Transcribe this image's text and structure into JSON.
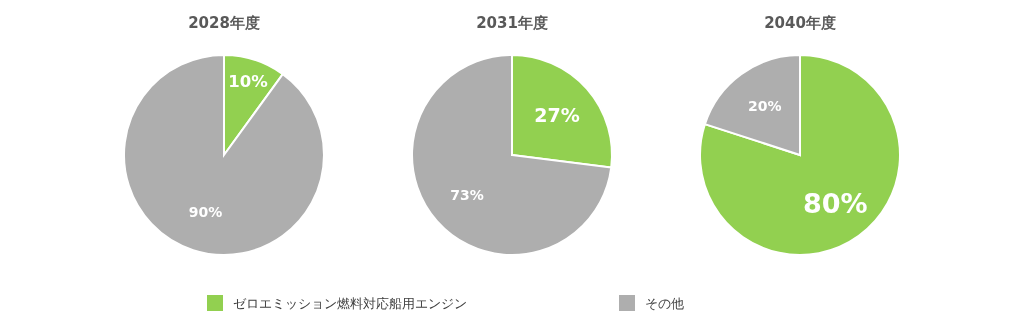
{
  "chart_data": [
    {
      "type": "pie",
      "title": "2028年度",
      "categories": [
        "ゼロエミッション燃料対応船用エンジン",
        "その他"
      ],
      "values": [
        10,
        90
      ],
      "colors": [
        "#92d050",
        "#aeaeae"
      ],
      "value_labels": [
        "10%",
        "90%"
      ],
      "legend": "bottom"
    },
    {
      "type": "pie",
      "title": "2031年度",
      "categories": [
        null,
        null
      ],
      "values": [
        27,
        73
      ],
      "colors": [
        "#92d050",
        "#aeaeae"
      ],
      "value_labels": [
        "27%",
        "73%"
      ]
    },
    {
      "type": "pie",
      "title": "2040年度",
      "categories": [
        null,
        null
      ],
      "values": [
        80,
        20
      ],
      "colors": [
        "#92d050",
        "#aeaeae"
      ],
      "value_labels": [
        "80%",
        "20%"
      ]
    }
  ]
}
